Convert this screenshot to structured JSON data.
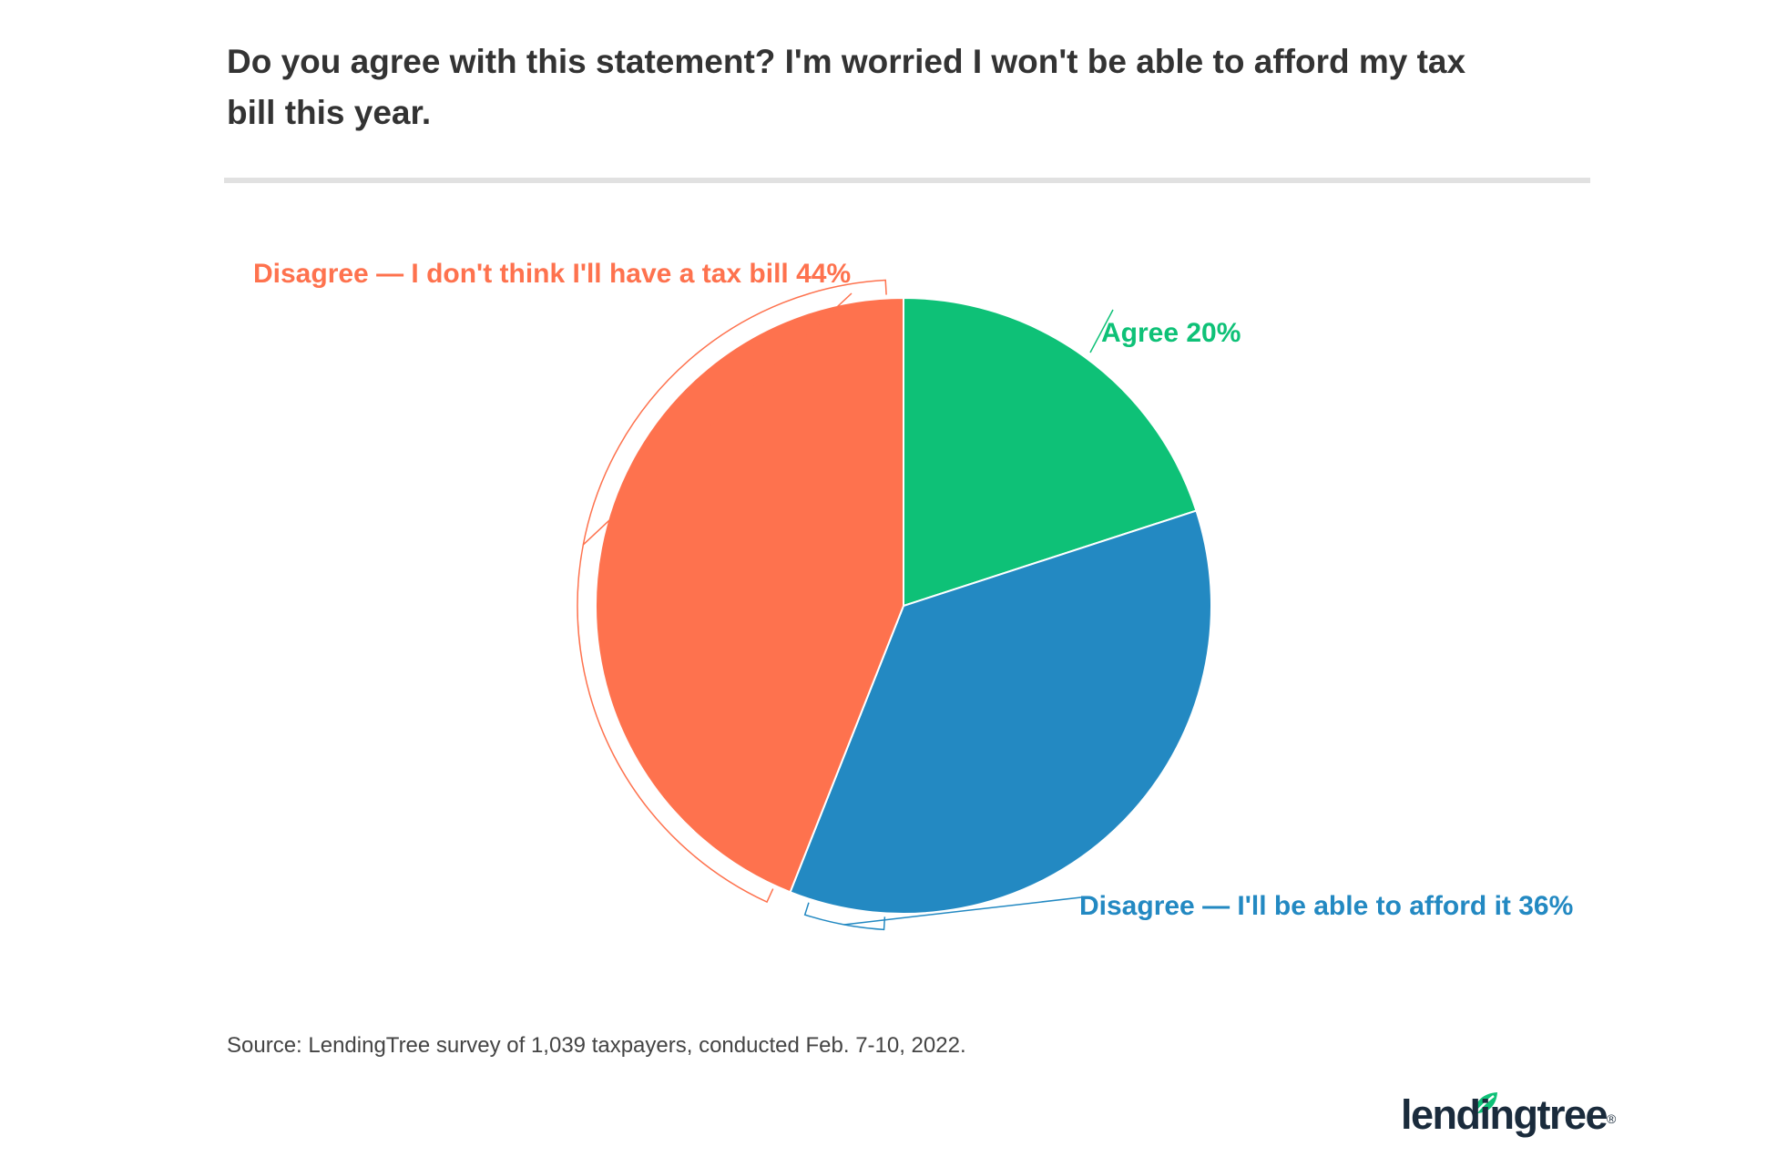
{
  "chart_data": {
    "type": "pie",
    "title": "Do you agree with this statement? I'm worried I won't be able to afford my tax bill this year.",
    "slices": [
      {
        "label": "Agree",
        "value": 20,
        "display": "Agree 20%",
        "color": "#0ec177"
      },
      {
        "label": "Disagree — I'll be able to afford it",
        "value": 36,
        "display": "Disagree — I'll be able to afford it 36%",
        "color": "#2389c2"
      },
      {
        "label": "Disagree — I don't think I'll have a tax bill",
        "value": 44,
        "display": "Disagree — I don't think I'll have a tax bill 44%",
        "color": "#fe724e"
      }
    ],
    "start": "12 o'clock, clockwise",
    "source": "Source: LendingTree survey of 1,039 taxpayers, conducted Feb. 7-10, 2022."
  },
  "brand": {
    "logo_text": "lendingtree",
    "logo_mark": "®",
    "accent_color": "#0ec177"
  }
}
